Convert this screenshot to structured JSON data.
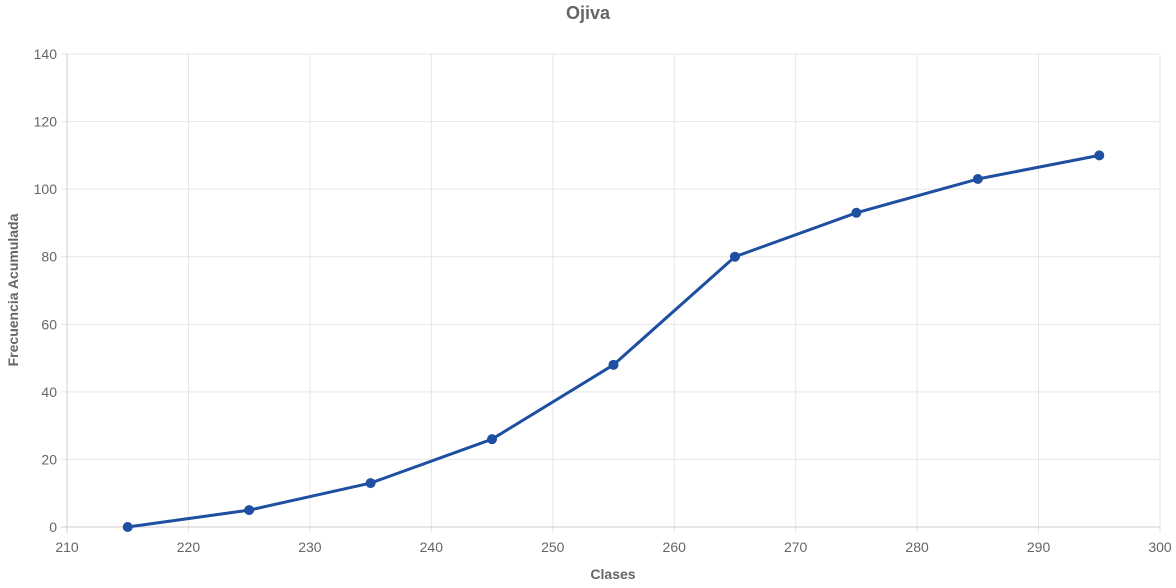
{
  "chart_data": {
    "type": "line",
    "title": "Ojiva",
    "xlabel": "Clases",
    "ylabel": "Frecuencia Acumulada",
    "xlim": [
      210,
      300
    ],
    "ylim": [
      0,
      140
    ],
    "x_ticks": [
      210,
      220,
      230,
      240,
      250,
      260,
      270,
      280,
      290,
      300
    ],
    "y_ticks": [
      0,
      20,
      40,
      60,
      80,
      100,
      120,
      140
    ],
    "grid": true,
    "legend": "none",
    "series": [
      {
        "color": "#1f4fa0",
        "x": [
          215,
          225,
          235,
          245,
          255,
          265,
          275,
          285,
          295
        ],
        "y": [
          0,
          5,
          13,
          26,
          48,
          80,
          93,
          103,
          110
        ]
      }
    ]
  }
}
